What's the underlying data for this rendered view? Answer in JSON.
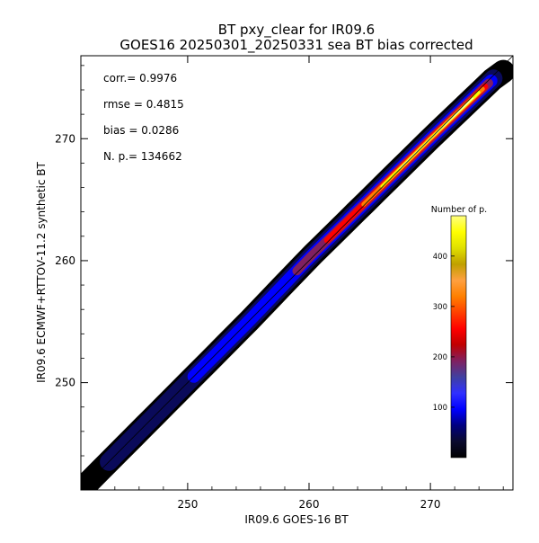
{
  "chart_data": {
    "type": "heatmap",
    "title": "BT pxy_clear for IR09.6",
    "subtitle": "GOES16 20250301_20250331 sea BT bias corrected",
    "xlabel": "IR09.6 GOES-16 BT",
    "ylabel": "IR09.6 ECMWF+RTTOV-11.2 synthetic BT",
    "xlim": [
      241.2,
      276.8
    ],
    "ylim": [
      241.2,
      276.8
    ],
    "xticks": [
      250,
      260,
      270
    ],
    "yticks": [
      250,
      260,
      270
    ],
    "grid": false,
    "stats": [
      {
        "label": "corr.=",
        "value": "0.9976"
      },
      {
        "label": "rmse =",
        "value": "0.4815"
      },
      {
        "label": "bias =",
        "value": "0.0286"
      },
      {
        "label": "N. p.=",
        "value": "134662"
      }
    ],
    "colorbar": {
      "title": "Number of p.",
      "range": [
        0,
        480
      ],
      "ticks": [
        100,
        200,
        300,
        400
      ],
      "colors": [
        "#000000",
        "#0a0a2e",
        "#000080",
        "#0000ff",
        "#3030ff",
        "#4040a0",
        "#802060",
        "#c00000",
        "#ff0000",
        "#ff4000",
        "#ff8000",
        "#ffa040",
        "#c0a000",
        "#e0e000",
        "#ffff00",
        "#ffff80"
      ]
    },
    "ridge": {
      "x": [
        241.2,
        245,
        250,
        255,
        260,
        265,
        270,
        274,
        275.8
      ],
      "y": [
        241.2,
        245,
        250,
        255,
        260.2,
        265.1,
        270,
        273.8,
        275.5
      ]
    },
    "density_bands": [
      {
        "name": "outer",
        "color": "#000000",
        "from": 241.2,
        "to": 276.0
      },
      {
        "name": "dark-blue",
        "color": "#0a0a5a",
        "from": 243.5,
        "to": 275.2
      },
      {
        "name": "blue",
        "color": "#0000ff",
        "from": 250.5,
        "to": 275.0
      },
      {
        "name": "purple",
        "color": "#802060",
        "from": 259.0,
        "to": 274.8
      },
      {
        "name": "red",
        "color": "#ff0000",
        "from": 261.5,
        "to": 274.5
      },
      {
        "name": "orange",
        "color": "#ff8000",
        "from": 264.5,
        "to": 274.3
      },
      {
        "name": "yellow",
        "color": "#ffff00",
        "from": 266.0,
        "to": 274.0
      },
      {
        "name": "core",
        "color": "#ffffc0",
        "from": 267.5,
        "to": 273.5
      }
    ]
  }
}
